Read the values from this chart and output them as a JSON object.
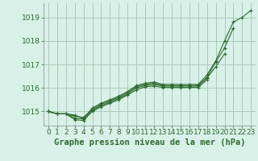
{
  "background_color": "#d8f0e8",
  "grid_color": "#aacaba",
  "line_color": "#2d6a2d",
  "marker_color": "#2d6a2d",
  "xlabel": "Graphe pression niveau de la mer (hPa)",
  "xlabel_fontsize": 7.5,
  "tick_fontsize": 6.5,
  "xlim": [
    -0.5,
    23.5
  ],
  "ylim": [
    1014.4,
    1019.6
  ],
  "yticks": [
    1015,
    1016,
    1017,
    1018,
    1019
  ],
  "xticks": [
    0,
    1,
    2,
    3,
    4,
    5,
    6,
    7,
    8,
    9,
    10,
    11,
    12,
    13,
    14,
    15,
    16,
    17,
    18,
    19,
    20,
    21,
    22,
    23
  ],
  "series": [
    {
      "x": [
        0,
        1,
        2,
        3,
        4,
        5,
        6,
        7,
        8,
        9,
        10,
        11,
        12,
        13,
        14,
        15,
        16,
        17,
        18,
        19,
        20,
        21,
        22,
        23
      ],
      "y": [
        1015.0,
        1014.9,
        1014.9,
        1014.85,
        1014.7,
        1015.15,
        1015.35,
        1015.5,
        1015.65,
        1015.85,
        1016.1,
        1016.2,
        1016.25,
        1016.15,
        1016.15,
        1016.15,
        1016.15,
        1016.15,
        1016.55,
        1017.15,
        1018.0,
        1018.8,
        1019.0,
        1019.3
      ]
    },
    {
      "x": [
        0,
        1,
        2,
        3,
        4,
        5,
        6,
        7,
        8,
        9,
        10,
        11,
        12,
        13,
        14,
        15,
        16,
        17,
        18,
        19,
        20,
        21
      ],
      "y": [
        1015.0,
        1014.9,
        1014.9,
        1014.8,
        1014.75,
        1015.1,
        1015.3,
        1015.45,
        1015.6,
        1015.8,
        1016.05,
        1016.15,
        1016.2,
        1016.1,
        1016.1,
        1016.1,
        1016.1,
        1016.1,
        1016.45,
        1017.1,
        1017.7,
        1018.55
      ]
    },
    {
      "x": [
        0,
        1,
        2,
        3,
        4,
        5,
        6,
        7,
        8,
        9,
        10,
        11,
        12,
        13,
        14,
        15,
        16,
        17,
        18,
        19,
        20
      ],
      "y": [
        1015.0,
        1014.9,
        1014.9,
        1014.72,
        1014.68,
        1015.05,
        1015.25,
        1015.4,
        1015.55,
        1015.75,
        1016.0,
        1016.1,
        1016.15,
        1016.08,
        1016.08,
        1016.08,
        1016.08,
        1016.08,
        1016.42,
        1016.9,
        1017.45
      ]
    },
    {
      "x": [
        0,
        1,
        2,
        3,
        4,
        5,
        6,
        7,
        8,
        9,
        10,
        11,
        12,
        13,
        14,
        15,
        16,
        17,
        18
      ],
      "y": [
        1015.0,
        1014.9,
        1014.9,
        1014.65,
        1014.62,
        1015.0,
        1015.2,
        1015.35,
        1015.5,
        1015.7,
        1015.92,
        1016.05,
        1016.08,
        1016.02,
        1016.02,
        1016.02,
        1016.02,
        1016.02,
        1016.35
      ]
    }
  ]
}
